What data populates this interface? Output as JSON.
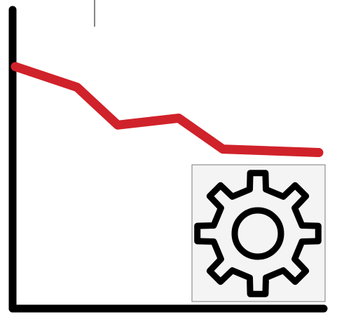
{
  "icon": {
    "name": "performance-decline-settings-icon",
    "trend_values": [
      100,
      88,
      66,
      70,
      52,
      50
    ],
    "colors": {
      "axes": "#000000",
      "trend_line": "#d0222a",
      "gear_stroke": "#000000",
      "badge_fill": "#f4f4f4",
      "badge_border": "#7a7a7a",
      "background": "#ffffff"
    }
  }
}
